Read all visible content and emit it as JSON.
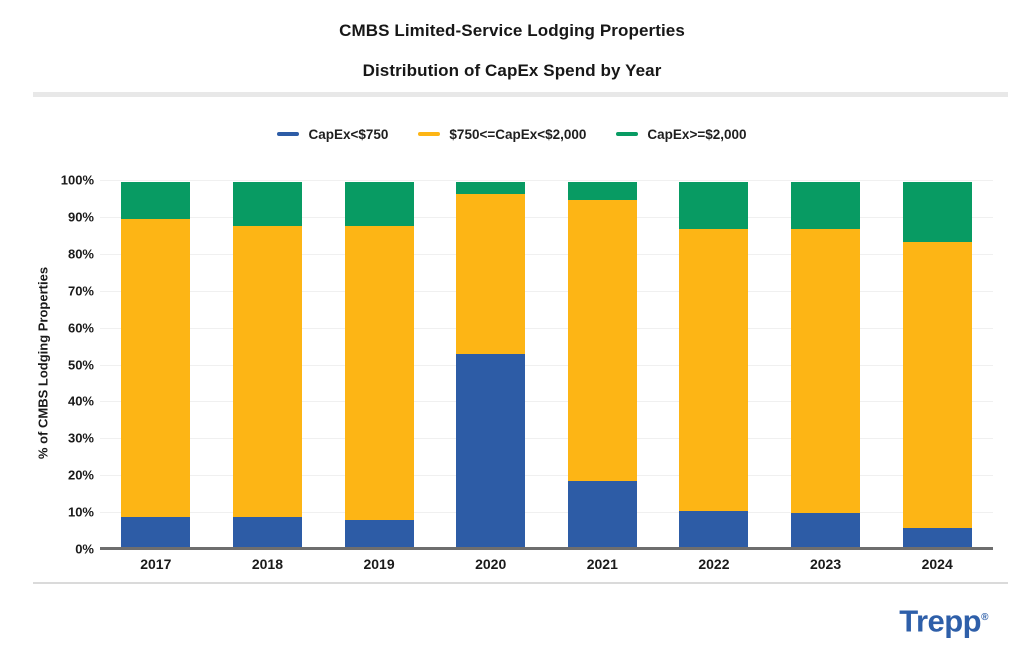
{
  "header": {
    "title_line1": "CMBS Limited-Service Lodging Properties",
    "title_line2": "Distribution of CapEx Spend by Year"
  },
  "chart_data": {
    "type": "bar",
    "stacked": true,
    "title": "CMBS Limited-Service Lodging Properties — Distribution of CapEx Spend by Year",
    "xlabel": "",
    "ylabel": "% of CMBS Lodging Properties",
    "ylim": [
      0,
      100
    ],
    "yticks": [
      0,
      10,
      20,
      30,
      40,
      50,
      60,
      70,
      80,
      90,
      100
    ],
    "ytick_suffix": "%",
    "grid": true,
    "legend_position": "top",
    "categories": [
      "2017",
      "2018",
      "2019",
      "2020",
      "2021",
      "2022",
      "2023",
      "2024"
    ],
    "series": [
      {
        "name": "CapEx<$750",
        "color": "#2d5ca6",
        "values": [
          8.6,
          8.8,
          7.8,
          52.8,
          18.3,
          10.4,
          9.7,
          5.6
        ]
      },
      {
        "name": "$750<=CapEx<$2,000",
        "color": "#fdb515",
        "values": [
          80.9,
          78.7,
          79.7,
          43.5,
          76.4,
          76.4,
          76.9,
          77.6
        ]
      },
      {
        "name": "CapEx>=$2,000",
        "color": "#089b63",
        "values": [
          10.0,
          12.0,
          12.0,
          3.2,
          4.8,
          12.7,
          12.9,
          16.3
        ]
      }
    ],
    "cumulative_tops_pct": {
      "2017": [
        8.6,
        89.5,
        99.5
      ],
      "2018": [
        8.8,
        87.5,
        99.5
      ],
      "2019": [
        7.8,
        87.5,
        99.5
      ],
      "2020": [
        52.8,
        96.3,
        99.5
      ],
      "2021": [
        18.3,
        94.7,
        99.5
      ],
      "2022": [
        10.4,
        86.8,
        99.5
      ],
      "2023": [
        9.7,
        86.6,
        99.5
      ],
      "2024": [
        5.6,
        83.2,
        99.5
      ]
    }
  },
  "colors": {
    "series_blue": "#2d5ca6",
    "series_yellow": "#fdb515",
    "series_green": "#089b63",
    "gridline": "#f0f0f0",
    "axis_line": "#6e6e6e",
    "divider": "#e8e8e8",
    "logo_blue": "#2e5fa9"
  },
  "footer": {
    "logo_text": "Trepp",
    "logo_reg": "®"
  }
}
